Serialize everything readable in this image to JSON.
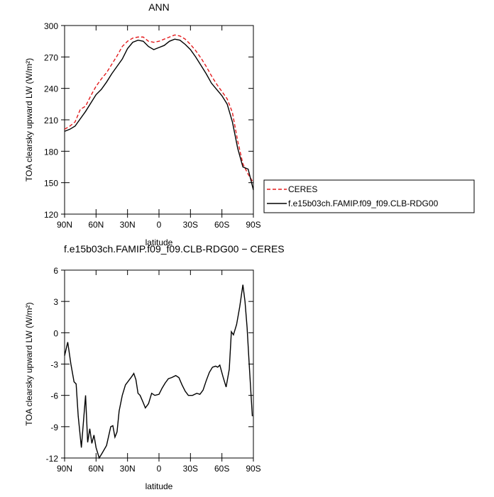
{
  "chart_data": [
    {
      "type": "line",
      "title": "ANN",
      "xlabel": "latitude",
      "ylabel": "TOA clearsky upward LW (W/m²)",
      "x": [
        90,
        85,
        80,
        75,
        70,
        65,
        60,
        55,
        50,
        45,
        40,
        35,
        30,
        25,
        20,
        15,
        10,
        5,
        0,
        -5,
        -10,
        -15,
        -20,
        -25,
        -30,
        -35,
        -40,
        -45,
        -50,
        -55,
        -60,
        -65,
        -70,
        -75,
        -80,
        -85,
        -90
      ],
      "series": [
        {
          "name": "CERES",
          "color": "#e31a1c",
          "line_style": "dashed",
          "values": [
            201,
            204,
            208,
            220,
            223,
            233,
            242,
            249,
            255,
            263,
            271,
            280,
            285,
            288,
            289,
            289,
            285,
            284,
            285,
            287,
            289,
            291,
            290,
            287,
            282,
            276,
            269,
            261,
            252,
            244,
            237,
            230,
            217,
            190,
            168,
            158,
            150
          ]
        },
        {
          "name": "f.e15b03ch.FAMIP.f09_f09.CLB-RDG00",
          "color": "#000000",
          "line_style": "solid",
          "values": [
            199,
            201,
            204,
            211,
            218,
            226,
            234,
            239,
            246,
            254,
            261,
            268,
            278,
            284,
            286,
            285,
            280,
            277,
            279,
            281,
            285,
            287,
            286,
            282,
            277,
            270,
            262,
            254,
            245,
            239,
            233,
            225,
            208,
            183,
            165,
            163,
            143
          ]
        }
      ],
      "xlim": [
        90,
        -90
      ],
      "xticks": [
        {
          "value": 90,
          "label": "90N"
        },
        {
          "value": 60,
          "label": "60N"
        },
        {
          "value": 30,
          "label": "30N"
        },
        0,
        {
          "value": -30,
          "label": "30S"
        },
        {
          "value": -60,
          "label": "60S"
        },
        {
          "value": -90,
          "label": "90S"
        }
      ],
      "ylim": [
        120,
        300
      ],
      "yticks": [
        120,
        150,
        180,
        210,
        240,
        270,
        300
      ],
      "legend": "outside-right"
    },
    {
      "type": "line",
      "title": "f.e15b03ch.FAMIP.f09_f09.CLB-RDG00 − CERES",
      "xlabel": "latitude",
      "ylabel": "TOA clearsky upward LW (W/m²)",
      "x": [
        90,
        87,
        84,
        81,
        79,
        77,
        74,
        70,
        68,
        66,
        64,
        62,
        60,
        57,
        54,
        50,
        46,
        44,
        42,
        40,
        38,
        35,
        32,
        29,
        26,
        24,
        22,
        20,
        18,
        15,
        13,
        10,
        7,
        4,
        0,
        -3,
        -6,
        -9,
        -12,
        -16,
        -19,
        -22,
        -25,
        -28,
        -32,
        -36,
        -39,
        -42,
        -45,
        -48,
        -51,
        -54,
        -56,
        -58,
        -61,
        -64,
        -67,
        -69,
        -71,
        -74,
        -77,
        -80,
        -82,
        -84,
        -86,
        -89
      ],
      "series": [
        {
          "name": "f.e15b03ch.FAMIP.f09_f09.CLB-RDG00 − CERES",
          "color": "#000000",
          "line_style": "solid",
          "values": [
            -2.2,
            -0.9,
            -3,
            -4.7,
            -4.9,
            -8,
            -11,
            -6,
            -10.5,
            -9.2,
            -10.6,
            -9.8,
            -11,
            -12,
            -11.5,
            -10.8,
            -9,
            -8.9,
            -10,
            -9.5,
            -7.5,
            -6,
            -5,
            -4.6,
            -4.2,
            -3.9,
            -4.5,
            -5.8,
            -6,
            -6.7,
            -7.2,
            -6.8,
            -5.8,
            -6,
            -5.9,
            -5.3,
            -4.8,
            -4.4,
            -4.3,
            -4.1,
            -4.3,
            -5,
            -5.6,
            -6,
            -6,
            -5.8,
            -5.9,
            -5.5,
            -4.6,
            -3.8,
            -3.3,
            -3.2,
            -3.3,
            -3.1,
            -4.2,
            -5.2,
            -3.5,
            0.1,
            -0.2,
            0.8,
            2.5,
            4.6,
            3,
            0.5,
            -3,
            -8
          ]
        }
      ],
      "xlim": [
        90,
        -90
      ],
      "xticks": [
        {
          "value": 90,
          "label": "90N"
        },
        {
          "value": 60,
          "label": "60N"
        },
        {
          "value": 30,
          "label": "30N"
        },
        0,
        {
          "value": -30,
          "label": "30S"
        },
        {
          "value": -60,
          "label": "60S"
        },
        {
          "value": -90,
          "label": "90S"
        }
      ],
      "ylim": [
        -12,
        6
      ],
      "yticks": [
        -12,
        -9,
        -6,
        -3,
        0,
        3,
        6
      ]
    }
  ]
}
